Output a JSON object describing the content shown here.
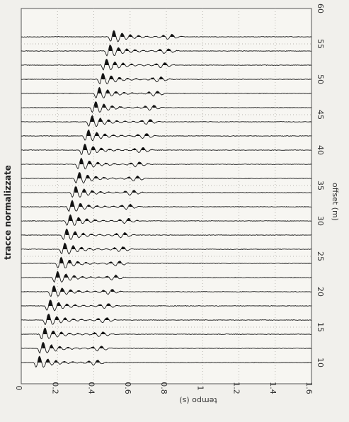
{
  "chart_data": {
    "type": "line",
    "title": "tracce normalizzate",
    "xlabel": "tempo (s)",
    "ylabel": "offset (m)",
    "xlim": [
      0,
      1.6
    ],
    "ylim": [
      7,
      60
    ],
    "x_ticks": [
      "0",
      "0.2",
      "0.4",
      "0.6",
      "0.8",
      "1",
      "1.2",
      "1.4",
      "1.6"
    ],
    "y_ticks": [
      "10",
      "15",
      "20",
      "25",
      "30",
      "35",
      "40",
      "45",
      "50",
      "55",
      "60"
    ],
    "grid": true,
    "series": [
      {
        "offset": 10,
        "arrival": 0.09
      },
      {
        "offset": 12,
        "arrival": 0.11
      },
      {
        "offset": 14,
        "arrival": 0.12
      },
      {
        "offset": 16,
        "arrival": 0.14
      },
      {
        "offset": 18,
        "arrival": 0.15
      },
      {
        "offset": 20,
        "arrival": 0.17
      },
      {
        "offset": 22,
        "arrival": 0.19
      },
      {
        "offset": 24,
        "arrival": 0.21
      },
      {
        "offset": 26,
        "arrival": 0.23
      },
      {
        "offset": 28,
        "arrival": 0.24
      },
      {
        "offset": 30,
        "arrival": 0.26
      },
      {
        "offset": 32,
        "arrival": 0.27
      },
      {
        "offset": 34,
        "arrival": 0.29
      },
      {
        "offset": 36,
        "arrival": 0.31
      },
      {
        "offset": 38,
        "arrival": 0.32
      },
      {
        "offset": 40,
        "arrival": 0.34
      },
      {
        "offset": 42,
        "arrival": 0.36
      },
      {
        "offset": 44,
        "arrival": 0.38
      },
      {
        "offset": 46,
        "arrival": 0.4
      },
      {
        "offset": 48,
        "arrival": 0.42
      },
      {
        "offset": 50,
        "arrival": 0.44
      },
      {
        "offset": 52,
        "arrival": 0.46
      },
      {
        "offset": 54,
        "arrival": 0.48
      },
      {
        "offset": 56,
        "arrival": 0.5
      }
    ]
  }
}
